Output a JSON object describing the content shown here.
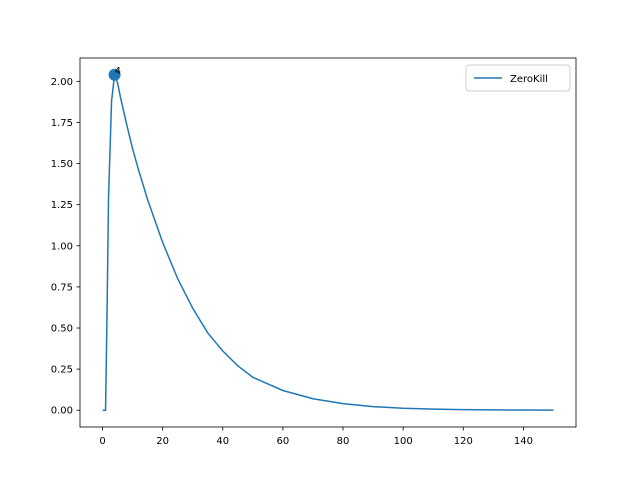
{
  "chart_data": {
    "type": "line",
    "title": "",
    "xlabel": "",
    "ylabel": "",
    "xlim": [
      -7.5,
      157.5
    ],
    "ylim": [
      -0.102,
      2.142
    ],
    "xticks": [
      0,
      20,
      40,
      60,
      80,
      100,
      120,
      140
    ],
    "yticks": [
      0.0,
      0.25,
      0.5,
      0.75,
      1.0,
      1.25,
      1.5,
      1.75,
      2.0
    ],
    "ytick_labels": [
      "0.00",
      "0.25",
      "0.50",
      "0.75",
      "1.00",
      "1.25",
      "1.50",
      "1.75",
      "2.00"
    ],
    "xtick_labels": [
      "0",
      "20",
      "40",
      "60",
      "80",
      "100",
      "120",
      "140"
    ],
    "grid": false,
    "legend_position": "top-right",
    "series": [
      {
        "name": "ZeroKill",
        "color": "#1f77b4",
        "x": [
          0,
          1,
          1.5,
          2,
          3,
          4,
          5,
          6,
          7,
          8,
          10,
          12,
          15,
          20,
          25,
          30,
          35,
          40,
          45,
          50,
          60,
          70,
          80,
          90,
          100,
          110,
          120,
          130,
          140,
          150
        ],
        "y": [
          0.0,
          0.0,
          0.6,
          1.3,
          1.88,
          2.04,
          1.99,
          1.9,
          1.82,
          1.74,
          1.59,
          1.46,
          1.28,
          1.02,
          0.8,
          0.62,
          0.47,
          0.36,
          0.27,
          0.2,
          0.12,
          0.07,
          0.04,
          0.022,
          0.012,
          0.007,
          0.004,
          0.002,
          0.001,
          0.0005
        ]
      }
    ],
    "highlight": {
      "x": 4,
      "y": 2.04,
      "label": "4",
      "color": "#1f77b4"
    }
  }
}
